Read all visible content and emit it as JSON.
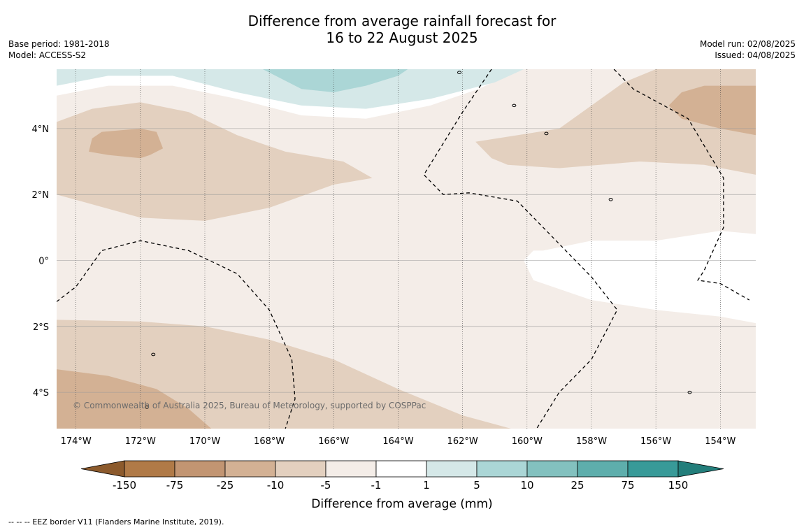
{
  "header": {
    "title_line1": "Difference from average rainfall forecast for",
    "title_line2": "16 to 22 August 2025",
    "base_period": "Base period: 1981-2018",
    "model": "Model: ACCESS-S2",
    "model_run": "Model run: 02/08/2025",
    "issued": "Issued: 04/08/2025"
  },
  "map": {
    "lon_range": [
      -174.6,
      -152.9
    ],
    "lat_range": [
      -5.1,
      5.8
    ],
    "lon_ticks": [
      {
        "value": -174,
        "label": "174°W"
      },
      {
        "value": -172,
        "label": "172°W"
      },
      {
        "value": -170,
        "label": "170°W"
      },
      {
        "value": -168,
        "label": "168°W"
      },
      {
        "value": -166,
        "label": "166°W"
      },
      {
        "value": -164,
        "label": "164°W"
      },
      {
        "value": -162,
        "label": "162°W"
      },
      {
        "value": -160,
        "label": "160°W"
      },
      {
        "value": -158,
        "label": "158°W"
      },
      {
        "value": -156,
        "label": "156°W"
      },
      {
        "value": -154,
        "label": "154°W"
      }
    ],
    "lat_ticks": [
      {
        "value": 4,
        "label": "4°N"
      },
      {
        "value": 2,
        "label": "2°N"
      },
      {
        "value": 0,
        "label": "0°"
      },
      {
        "value": -2,
        "label": "2°S"
      },
      {
        "value": -4,
        "label": "4°S"
      }
    ],
    "background_class": "-5 to -1",
    "copyright": "© Commonwealth of Australia 2025, Bureau of Meteorology, supported by COSPPac",
    "regions": [
      {
        "class": "-10 to -5",
        "color": "#e3d0bf",
        "points": [
          [
            -174.6,
            4.2
          ],
          [
            -173.5,
            4.6
          ],
          [
            -172,
            4.8
          ],
          [
            -170.5,
            4.5
          ],
          [
            -169,
            3.8
          ],
          [
            -167.5,
            3.3
          ],
          [
            -165.7,
            3.0
          ],
          [
            -164.8,
            2.5
          ],
          [
            -166,
            2.3
          ],
          [
            -168,
            1.6
          ],
          [
            -170,
            1.2
          ],
          [
            -172,
            1.3
          ],
          [
            -174.6,
            2.0
          ]
        ]
      },
      {
        "class": "-25 to -10",
        "color": "#d3b194",
        "points": [
          [
            -173.5,
            3.7
          ],
          [
            -173.2,
            3.9
          ],
          [
            -172,
            4.0
          ],
          [
            -171.5,
            3.9
          ],
          [
            -171.3,
            3.4
          ],
          [
            -171.7,
            3.2
          ],
          [
            -172,
            3.1
          ],
          [
            -173,
            3.2
          ],
          [
            -173.6,
            3.3
          ]
        ]
      },
      {
        "class": "-10 to -5",
        "color": "#e3d0bf",
        "points": [
          [
            -174.6,
            -1.8
          ],
          [
            -172,
            -1.85
          ],
          [
            -170,
            -2.0
          ],
          [
            -168,
            -2.4
          ],
          [
            -166,
            -3.0
          ],
          [
            -164,
            -3.9
          ],
          [
            -162,
            -4.7
          ],
          [
            -160.5,
            -5.1
          ],
          [
            -174.6,
            -5.1
          ]
        ]
      },
      {
        "class": "-25 to -10",
        "color": "#d3b194",
        "points": [
          [
            -174.6,
            -3.3
          ],
          [
            -173,
            -3.5
          ],
          [
            -171.5,
            -3.9
          ],
          [
            -170.5,
            -4.5
          ],
          [
            -169.8,
            -5.1
          ],
          [
            -174.6,
            -5.1
          ]
        ]
      },
      {
        "class": "-10 to -5",
        "color": "#e3d0bf",
        "points": [
          [
            -161.6,
            3.6
          ],
          [
            -159,
            4.0
          ],
          [
            -157,
            5.4
          ],
          [
            -156,
            5.8
          ],
          [
            -152.9,
            5.8
          ],
          [
            -152.9,
            2.6
          ],
          [
            -154.5,
            2.9
          ],
          [
            -156.5,
            3.0
          ],
          [
            -159,
            2.8
          ],
          [
            -160.6,
            2.9
          ],
          [
            -161.1,
            3.1
          ]
        ]
      },
      {
        "class": "-25 to -10",
        "color": "#d3b194",
        "points": [
          [
            -155.6,
            4.7
          ],
          [
            -155.2,
            5.1
          ],
          [
            -154.5,
            5.3
          ],
          [
            -152.9,
            5.3
          ],
          [
            -152.9,
            3.8
          ],
          [
            -154,
            4.0
          ],
          [
            -155.2,
            4.3
          ]
        ]
      },
      {
        "class": "-1 to 1",
        "color": "#ffffff",
        "points": [
          [
            -152.9,
            0.8
          ],
          [
            -154,
            0.9
          ],
          [
            -156,
            0.6
          ],
          [
            -158,
            0.6
          ],
          [
            -159.5,
            0.3
          ],
          [
            -159.8,
            0.3
          ],
          [
            -160.1,
            0.0
          ],
          [
            -159.8,
            -0.6
          ],
          [
            -158,
            -1.2
          ],
          [
            -156,
            -1.5
          ],
          [
            -154,
            -1.7
          ],
          [
            -152.9,
            -1.9
          ]
        ]
      },
      {
        "class": "-1 to 1",
        "color": "#ffffff",
        "points": [
          [
            -174.6,
            5.8
          ],
          [
            -160.2,
            5.8
          ],
          [
            -161.5,
            5.2
          ],
          [
            -163,
            4.7
          ],
          [
            -165,
            4.3
          ],
          [
            -167,
            4.4
          ],
          [
            -169,
            4.9
          ],
          [
            -171,
            5.3
          ],
          [
            -173,
            5.3
          ],
          [
            -174.6,
            5.0
          ]
        ]
      },
      {
        "class": "1 to 5",
        "color": "#d5e8e8",
        "points": [
          [
            -174.6,
            5.8
          ],
          [
            -160.1,
            5.8
          ],
          [
            -161,
            5.4
          ],
          [
            -163,
            4.9
          ],
          [
            -165,
            4.6
          ],
          [
            -167,
            4.7
          ],
          [
            -169,
            5.1
          ],
          [
            -171,
            5.6
          ],
          [
            -173,
            5.6
          ],
          [
            -174.6,
            5.3
          ]
        ]
      },
      {
        "class": "5 to 10",
        "color": "#abd6d6",
        "points": [
          [
            -168.2,
            5.8
          ],
          [
            -163.7,
            5.8
          ],
          [
            -164,
            5.6
          ],
          [
            -165,
            5.3
          ],
          [
            -166,
            5.1
          ],
          [
            -167,
            5.2
          ]
        ]
      }
    ],
    "eez_lines": [
      [
        [
          -174.6,
          -1.25
        ],
        [
          -174,
          -0.8
        ],
        [
          -173.2,
          0.3
        ],
        [
          -172,
          0.6
        ],
        [
          -170.5,
          0.3
        ],
        [
          -169,
          -0.4
        ],
        [
          -168,
          -1.5
        ],
        [
          -167.3,
          -3.0
        ],
        [
          -167.2,
          -4.2
        ],
        [
          -167.5,
          -5.1
        ]
      ],
      [
        [
          -161.1,
          5.8
        ],
        [
          -162,
          4.5
        ],
        [
          -163.2,
          2.6
        ],
        [
          -162.6,
          2.0
        ],
        [
          -161.8,
          2.05
        ],
        [
          -160.3,
          1.8
        ],
        [
          -159.5,
          1.0
        ],
        [
          -158,
          -0.5
        ],
        [
          -157.2,
          -1.5
        ],
        [
          -158,
          -3.0
        ],
        [
          -159,
          -4.0
        ],
        [
          -159.7,
          -5.1
        ]
      ],
      [
        [
          -157.3,
          5.8
        ],
        [
          -156.7,
          5.2
        ],
        [
          -155,
          4.3
        ],
        [
          -153.9,
          2.5
        ],
        [
          -153.9,
          1.0
        ],
        [
          -154.5,
          -0.3
        ],
        [
          -154.7,
          -0.6
        ],
        [
          -154,
          -0.7
        ],
        [
          -153.1,
          -1.2
        ]
      ]
    ],
    "islands": [
      {
        "lon": -159.4,
        "lat": 3.85
      },
      {
        "lon": -157.4,
        "lat": 1.85
      },
      {
        "lon": -171.6,
        "lat": -2.85
      },
      {
        "lon": -171.8,
        "lat": -4.45
      },
      {
        "lon": -154.95,
        "lat": -4.0
      },
      {
        "lon": -162.1,
        "lat": 5.7
      },
      {
        "lon": -160.4,
        "lat": 4.7
      }
    ]
  },
  "legend": {
    "title": "Difference from average (mm)",
    "labels": [
      "-150",
      "-75",
      "-25",
      "-10",
      "-5",
      "-1",
      "1",
      "5",
      "10",
      "25",
      "75",
      "150"
    ],
    "colors": [
      "#b07a47",
      "#c29572",
      "#d3b194",
      "#e3d0bf",
      "#f4ede8",
      "#ffffff",
      "#d5e8e8",
      "#abd6d6",
      "#83c1bf",
      "#5eaeac",
      "#389a98"
    ],
    "low_extend_color": "#8c5a2c",
    "high_extend_color": "#237e7b"
  },
  "footer": {
    "eez_symbol": "-- -- --",
    "eez_text": "EEZ border V11 (Flanders Marine Institute, 2019)."
  }
}
